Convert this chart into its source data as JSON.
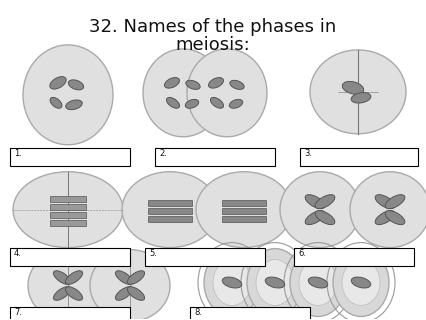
{
  "title_line1": "32. Names of the phases in",
  "title_line2": "meiosis:",
  "title_fontsize": 13,
  "background_color": "#ffffff",
  "label_numbers": [
    "1.",
    "2.",
    "3.",
    "4.",
    "5.",
    "6.",
    "7.",
    "8."
  ],
  "cell_edge_color": "#aaaaaa",
  "cell_face_color": "#e0e0e0",
  "chrom_edge": "#555555",
  "chrom_face": "#888888"
}
